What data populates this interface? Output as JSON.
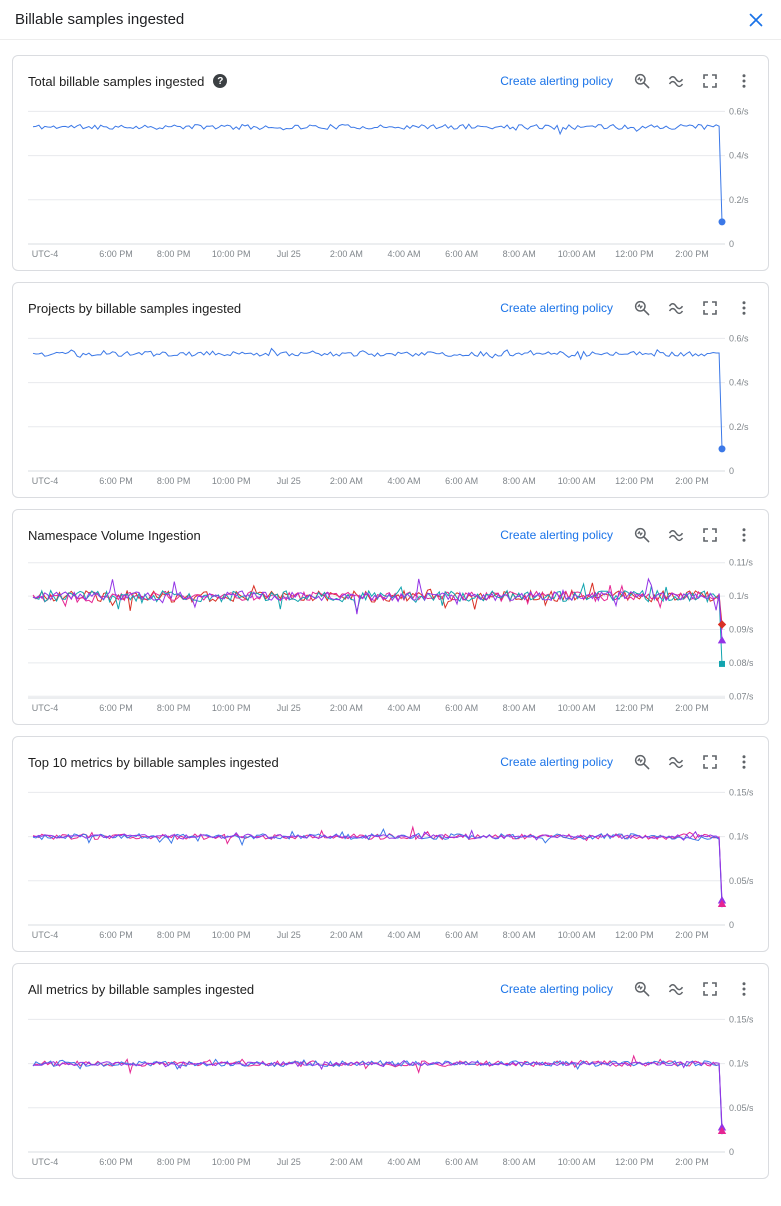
{
  "header": {
    "title": "Billable samples ingested"
  },
  "cards": [
    {
      "title": "Total billable samples ingested",
      "help_icon": "?",
      "link": "Create alerting policy",
      "chart_data": {
        "type": "line",
        "x_ticks": [
          "UTC-4",
          "6:00 PM",
          "8:00 PM",
          "10:00 PM",
          "Jul 25",
          "2:00 AM",
          "4:00 AM",
          "6:00 AM",
          "8:00 AM",
          "10:00 AM",
          "12:00 PM",
          "2:00 PM"
        ],
        "y_ticks": [
          {
            "label": "0.6/s",
            "value": 0.6
          },
          {
            "label": "0.4/s",
            "value": 0.4
          },
          {
            "label": "0.2/s",
            "value": 0.2
          },
          {
            "label": "0",
            "value": 0
          }
        ],
        "ylim": [
          0,
          0.62
        ],
        "series": [
          {
            "color": "#3b78e7",
            "base": 0.53,
            "noise": 0.011,
            "spike": 0.022,
            "seed": 11,
            "end_value": 0.1
          }
        ],
        "end_markers": [
          {
            "shape": "circle",
            "color": "#3b78e7",
            "value": 0.1
          }
        ]
      }
    },
    {
      "title": "Projects by billable samples ingested",
      "link": "Create alerting policy",
      "chart_data": {
        "type": "line",
        "x_ticks": [
          "UTC-4",
          "6:00 PM",
          "8:00 PM",
          "10:00 PM",
          "Jul 25",
          "2:00 AM",
          "4:00 AM",
          "6:00 AM",
          "8:00 AM",
          "10:00 AM",
          "12:00 PM",
          "2:00 PM"
        ],
        "y_ticks": [
          {
            "label": "0.6/s",
            "value": 0.6
          },
          {
            "label": "0.4/s",
            "value": 0.4
          },
          {
            "label": "0.2/s",
            "value": 0.2
          },
          {
            "label": "0",
            "value": 0
          }
        ],
        "ylim": [
          0,
          0.62
        ],
        "series": [
          {
            "color": "#3b78e7",
            "base": 0.53,
            "noise": 0.011,
            "spike": 0.022,
            "seed": 47,
            "end_value": 0.1
          }
        ],
        "end_markers": [
          {
            "shape": "circle",
            "color": "#3b78e7",
            "value": 0.1
          }
        ]
      }
    },
    {
      "title": "Namespace Volume Ingestion",
      "link": "Create alerting policy",
      "chart_data": {
        "type": "line",
        "x_ticks": [
          "UTC-4",
          "6:00 PM",
          "8:00 PM",
          "10:00 PM",
          "Jul 25",
          "2:00 AM",
          "4:00 AM",
          "6:00 AM",
          "8:00 AM",
          "10:00 AM",
          "12:00 PM",
          "2:00 PM"
        ],
        "y_ticks": [
          {
            "label": "0.11/s",
            "value": 0.11
          },
          {
            "label": "0.1/s",
            "value": 0.1
          },
          {
            "label": "0.09/s",
            "value": 0.09
          },
          {
            "label": "0.08/s",
            "value": 0.08
          },
          {
            "label": "0.07/s",
            "value": 0.07
          }
        ],
        "ylim": [
          0.0695,
          0.1105
        ],
        "series": [
          {
            "color": "#d93025",
            "base": 0.1,
            "noise": 0.0018,
            "spike": 0.0042,
            "seed": 21,
            "end_value": 0.0915
          },
          {
            "color": "#e52592",
            "base": 0.1,
            "noise": 0.0014,
            "spike": 0.003,
            "seed": 22,
            "end_value": 0.09
          },
          {
            "color": "#12a4af",
            "base": 0.1,
            "noise": 0.0017,
            "spike": 0.004,
            "seed": 23,
            "end_value": 0.0797
          },
          {
            "color": "#9334e6",
            "base": 0.1,
            "noise": 0.0013,
            "spike": 0.0045,
            "seed": 24,
            "end_value": 0.0868
          }
        ],
        "end_markers": [
          {
            "shape": "diamond",
            "color": "#d93025",
            "value": 0.0915
          },
          {
            "shape": "triangle",
            "color": "#9334e6",
            "value": 0.0868
          },
          {
            "shape": "square",
            "color": "#12a4af",
            "value": 0.0797
          }
        ]
      }
    },
    {
      "title": "Top 10 metrics by billable samples ingested",
      "link": "Create alerting policy",
      "chart_data": {
        "type": "line",
        "x_ticks": [
          "UTC-4",
          "6:00 PM",
          "8:00 PM",
          "10:00 PM",
          "Jul 25",
          "2:00 AM",
          "4:00 AM",
          "6:00 AM",
          "8:00 AM",
          "10:00 AM",
          "12:00 PM",
          "2:00 PM"
        ],
        "y_ticks": [
          {
            "label": "0.15/s",
            "value": 0.15
          },
          {
            "label": "0.1/s",
            "value": 0.1
          },
          {
            "label": "0.05/s",
            "value": 0.05
          },
          {
            "label": "0",
            "value": 0
          }
        ],
        "ylim": [
          0,
          0.155
        ],
        "series": [
          {
            "color": "#e52592",
            "base": 0.1,
            "noise": 0.0032,
            "spike": 0.008,
            "seed": 31,
            "end_value": 0.024
          },
          {
            "color": "#3b78e7",
            "base": 0.1,
            "noise": 0.0032,
            "spike": 0.007,
            "seed": 32,
            "end_value": 0.02
          },
          {
            "color": "#9334e6",
            "base": 0.1,
            "noise": 0.0022,
            "spike": 0.005,
            "seed": 33,
            "end_value": 0.028
          }
        ],
        "end_markers": [
          {
            "shape": "triangle",
            "color": "#9334e6",
            "value": 0.028
          },
          {
            "shape": "triangle",
            "color": "#e52592",
            "value": 0.024
          }
        ]
      }
    },
    {
      "title": "All metrics by billable samples ingested",
      "link": "Create alerting policy",
      "chart_data": {
        "type": "line",
        "x_ticks": [
          "UTC-4",
          "6:00 PM",
          "8:00 PM",
          "10:00 PM",
          "Jul 25",
          "2:00 AM",
          "4:00 AM",
          "6:00 AM",
          "8:00 AM",
          "10:00 AM",
          "12:00 PM",
          "2:00 PM"
        ],
        "y_ticks": [
          {
            "label": "0.15/s",
            "value": 0.15
          },
          {
            "label": "0.1/s",
            "value": 0.1
          },
          {
            "label": "0.05/s",
            "value": 0.05
          },
          {
            "label": "0",
            "value": 0
          }
        ],
        "ylim": [
          0,
          0.155
        ],
        "series": [
          {
            "color": "#e52592",
            "base": 0.1,
            "noise": 0.0032,
            "spike": 0.008,
            "seed": 51,
            "end_value": 0.024
          },
          {
            "color": "#3b78e7",
            "base": 0.1,
            "noise": 0.0032,
            "spike": 0.007,
            "seed": 52,
            "end_value": 0.02
          },
          {
            "color": "#9334e6",
            "base": 0.1,
            "noise": 0.0022,
            "spike": 0.005,
            "seed": 53,
            "end_value": 0.028
          }
        ],
        "end_markers": [
          {
            "shape": "triangle",
            "color": "#9334e6",
            "value": 0.028
          },
          {
            "shape": "triangle",
            "color": "#e52592",
            "value": 0.024
          }
        ]
      }
    }
  ],
  "colors": {
    "accent_blue": "#1a73e8",
    "line_blue": "#3b78e7",
    "line_red": "#d93025",
    "line_magenta": "#e52592",
    "line_teal": "#12a4af",
    "line_purple": "#9334e6",
    "icon_gray": "#5f6368",
    "axis_label_gray": "#80868b"
  }
}
